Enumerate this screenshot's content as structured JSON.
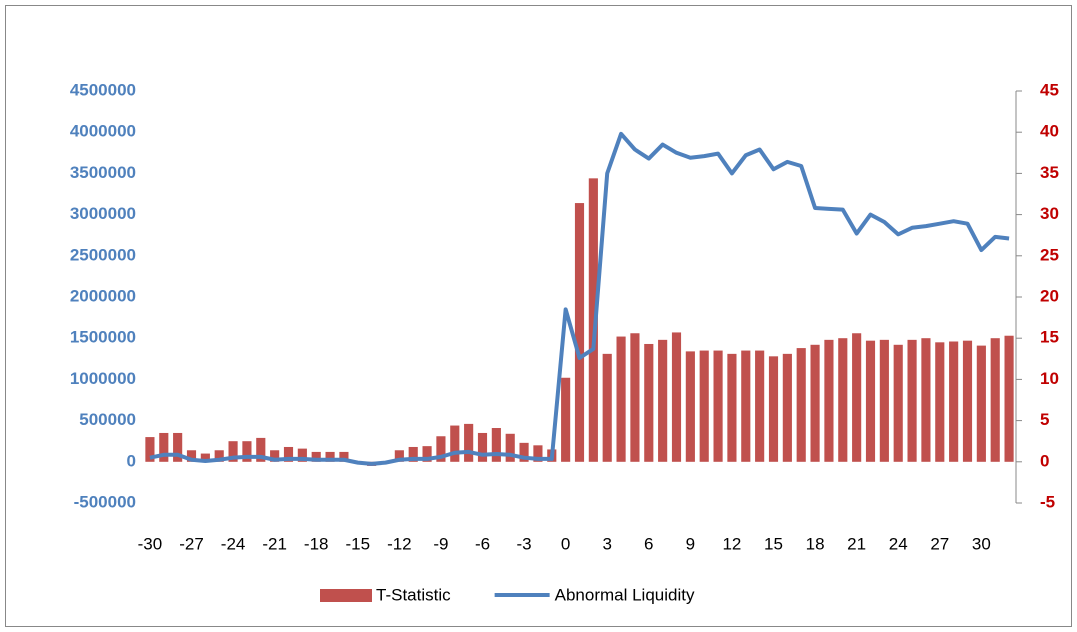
{
  "chart_data": {
    "type": "combo",
    "categories": [
      "-30",
      null,
      null,
      "-27",
      null,
      null,
      "-24",
      null,
      null,
      "-21",
      null,
      null,
      "-18",
      null,
      null,
      "-15",
      null,
      null,
      "-12",
      null,
      null,
      "-9",
      null,
      null,
      "-6",
      null,
      null,
      "-3",
      null,
      null,
      "0",
      null,
      null,
      "3",
      null,
      null,
      "6",
      null,
      null,
      "9",
      null,
      null,
      "12",
      null,
      null,
      "15",
      null,
      null,
      "18",
      null,
      null,
      "21",
      null,
      null,
      "24",
      null,
      null,
      "27",
      null,
      null,
      "30",
      null,
      null
    ],
    "series": [
      {
        "name": "T-Statistic",
        "type": "bar",
        "color": "#c0504d",
        "axis": "y2",
        "values": [
          3.0,
          3.5,
          3.5,
          1.4,
          1.0,
          1.4,
          2.5,
          2.5,
          2.9,
          1.4,
          1.8,
          1.6,
          1.2,
          1.2,
          1.2,
          0.1,
          -0.5,
          0.1,
          1.4,
          1.8,
          1.9,
          3.1,
          4.4,
          4.6,
          3.5,
          4.1,
          3.4,
          2.3,
          2.0,
          1.5,
          10.2,
          31.4,
          34.4,
          13.1,
          15.2,
          15.6,
          14.3,
          14.8,
          15.7,
          13.4,
          13.5,
          13.5,
          13.1,
          13.5,
          13.5,
          12.8,
          13.1,
          13.8,
          14.2,
          14.8,
          15.0,
          15.6,
          14.7,
          14.8,
          14.2,
          14.8,
          15.0,
          14.5,
          14.6,
          14.7,
          14.1,
          15.0,
          15.3
        ]
      },
      {
        "name": "Abnormal Liquidity",
        "type": "line",
        "color": "#4f81bd",
        "values": [
          50000,
          85000,
          85000,
          25000,
          10000,
          25000,
          50000,
          60000,
          60000,
          25000,
          35000,
          35000,
          25000,
          25000,
          25000,
          -10000,
          -25000,
          -10000,
          25000,
          35000,
          35000,
          60000,
          110000,
          120000,
          85000,
          95000,
          85000,
          50000,
          35000,
          35000,
          1850000,
          1260000,
          1370000,
          3500000,
          3980000,
          3790000,
          3680000,
          3850000,
          3750000,
          3690000,
          3710000,
          3740000,
          3500000,
          3720000,
          3790000,
          3550000,
          3640000,
          3590000,
          3080000,
          3070000,
          3060000,
          2770000,
          3000000,
          2910000,
          2760000,
          2840000,
          2860000,
          2890000,
          2920000,
          2890000,
          2570000,
          2730000,
          2710000
        ]
      }
    ],
    "ylim": [
      -500000,
      4500000
    ],
    "yticks": [
      -500000,
      0,
      500000,
      1000000,
      1500000,
      2000000,
      2500000,
      3000000,
      3500000,
      4000000,
      4500000
    ],
    "y2lim": [
      -5,
      45
    ],
    "y2ticks": [
      -5,
      0,
      5,
      10,
      15,
      20,
      25,
      30,
      35,
      40,
      45
    ],
    "legend": "bottom"
  }
}
